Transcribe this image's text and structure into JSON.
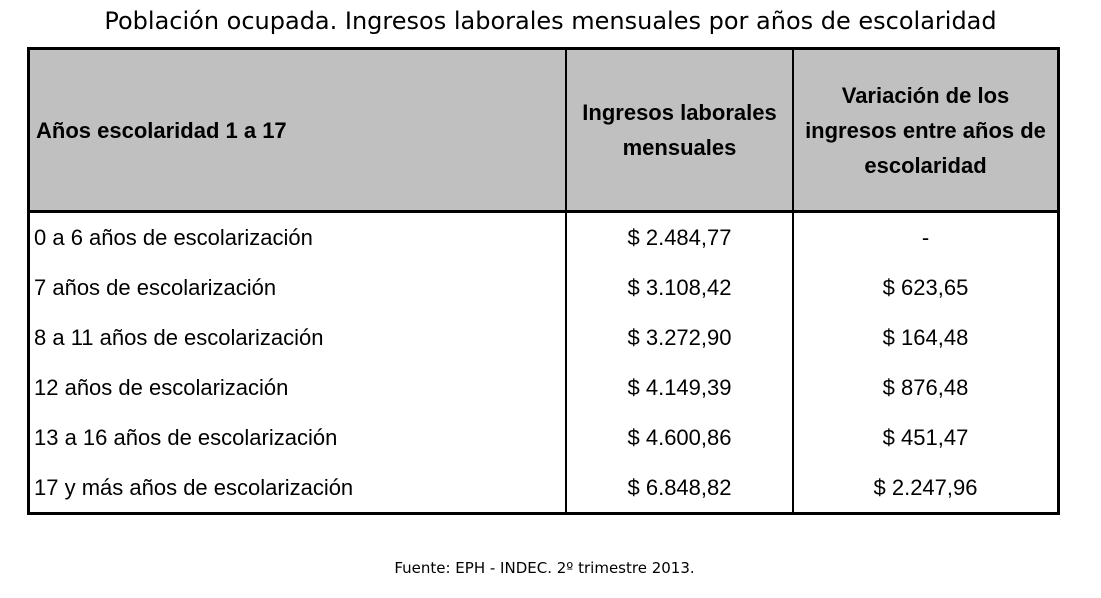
{
  "title": "Población ocupada. Ingresos laborales mensuales por años de escolaridad",
  "table": {
    "headers": [
      "Años escolaridad 1 a 17",
      "Ingresos laborales mensuales",
      "Variación de los ingresos entre años de escolaridad"
    ],
    "rows": [
      {
        "label": "0 a 6 años de escolarización",
        "ingresos": "$ 2.484,77",
        "variacion": "-"
      },
      {
        "label": "7 años de escolarización",
        "ingresos": "$ 3.108,42",
        "variacion": "$ 623,65"
      },
      {
        "label": "8 a 11 años de escolarización",
        "ingresos": "$ 3.272,90",
        "variacion": "$ 164,48"
      },
      {
        "label": "12 años de escolarización",
        "ingresos": "$ 4.149,39",
        "variacion": "$ 876,48"
      },
      {
        "label": "13 a 16 años de escolarización",
        "ingresos": "$ 4.600,86",
        "variacion": "$ 451,47"
      },
      {
        "label": "17 y más años de escolarización",
        "ingresos": "$ 6.848,82",
        "variacion": "$ 2.247,96"
      }
    ]
  },
  "source": "Fuente: EPH - INDEC. 2º trimestre 2013.",
  "colors": {
    "header_background": "#c0c0c0",
    "border": "#000000",
    "text": "#000000"
  }
}
